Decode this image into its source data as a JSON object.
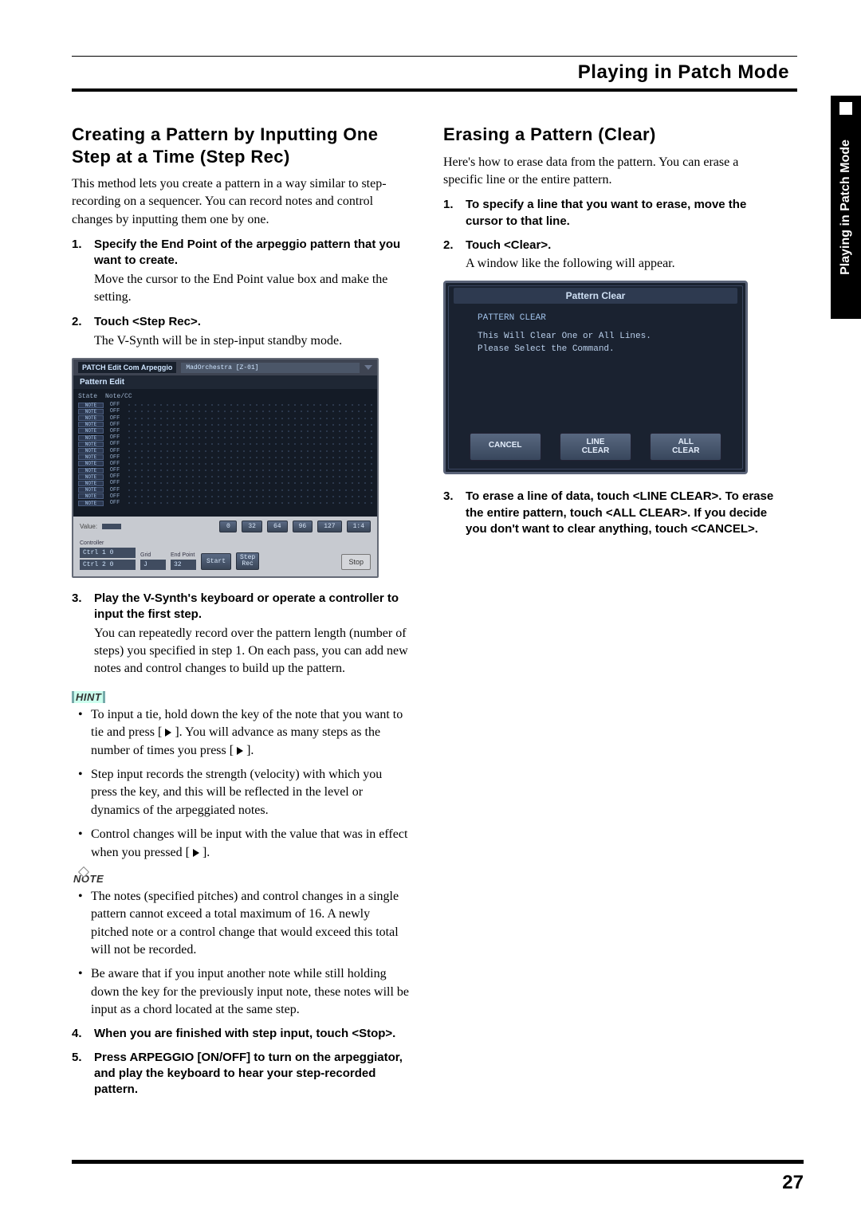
{
  "chapter": "Playing in Patch Mode",
  "sideTab": "Playing in Patch Mode",
  "pageNumber": "27",
  "left": {
    "title": "Creating a Pattern by Inputting One Step at a Time (Step Rec)",
    "intro": "This method lets you create a pattern in a way similar to step-recording on a sequencer. You can record notes and control changes by inputting them one by one.",
    "steps": [
      {
        "head": "Specify the End Point of the arpeggio pattern that you want to create.",
        "body": "Move the cursor to the End Point value box and make the setting."
      },
      {
        "head": "Touch <Step Rec>.",
        "body": "The V-Synth will be in step-input standby mode."
      },
      {
        "head": "Play the V-Synth's keyboard or operate a controller to input the first step.",
        "body": "You can repeatedly record over the pattern length (number of steps) you specified in step 1. On each pass, you can add new notes and control changes to build up the pattern."
      }
    ],
    "hintLabel": "HINT",
    "hints": [
      "To input a tie, hold down the key of the note that you want to tie and press [ ▶ ]. You will advance as many steps as the number of times you press [ ▶ ].",
      "Step input records the strength (velocity) with which you press the key, and this will be reflected in the level or dynamics of the arpeggiated notes.",
      "Control changes will be input with the value that was in effect when you pressed [ ▶ ]."
    ],
    "noteLabel": "NOTE",
    "notes": [
      "The notes (specified pitches) and control changes in a single pattern cannot exceed a total maximum of 16. A newly pitched note or a control change that would exceed this total will not be recorded.",
      "Be aware that if you input another note while still holding down the key for the previously input note, these notes will be input as a chord located at the same step."
    ],
    "steps2": [
      {
        "head": "When you are finished with step input, touch <Stop>."
      },
      {
        "head": "Press ARPEGGIO [ON/OFF] to turn on the arpeggiator, and play the keyboard to hear your step-recorded pattern."
      }
    ],
    "screenshot": {
      "titleA": "PATCH Edit Com Arpeggio",
      "titleB": "MadOrchestra [Z-01]",
      "subTitle": "Pattern Edit",
      "colState": "State",
      "colNote": "Note/CC",
      "rowState": "NOTE",
      "rowNote": "OFF",
      "rowCount": 16,
      "valueLabel": "Value:",
      "octaveButtons": [
        "0",
        "32",
        "64",
        "96",
        "127",
        "1:4"
      ],
      "controllerLabel": "Controller",
      "controllerRows": [
        "Ctrl 1    0",
        "Ctrl 2    0"
      ],
      "gridLabel": "Grid",
      "gridValue": "J",
      "endLabel": "End Point",
      "endValue": "32",
      "startBtn": "Start",
      "stepBtn": "Step\nRec",
      "stopBtn": "Stop"
    }
  },
  "right": {
    "title": "Erasing a Pattern (Clear)",
    "intro": "Here's how to erase data from the pattern. You can erase a specific line or the entire pattern.",
    "steps": [
      {
        "head": "To specify a line that you want to erase, move the cursor to that line."
      },
      {
        "head": "Touch <Clear>.",
        "body": "A window like the following will appear."
      },
      {
        "head": "To erase a line of data, touch <LINE CLEAR>. To erase the entire pattern, touch <ALL CLEAR>. If you decide you don't want to clear anything, touch <CANCEL>."
      }
    ],
    "dialog": {
      "title": "Pattern Clear",
      "heading": "PATTERN CLEAR",
      "line1": "This Will Clear One or All Lines.",
      "line2": "Please Select the Command.",
      "buttons": [
        "CANCEL",
        "LINE\nCLEAR",
        "ALL\nCLEAR"
      ]
    }
  },
  "colors": {
    "pageBg": "#ffffff",
    "ink": "#000000",
    "screenBg": "#141b26",
    "screenPanel": "#c7cad0",
    "btnGradTop": "#586880",
    "btnGradBot": "#38465c",
    "dlgBg": "#1a2230"
  }
}
